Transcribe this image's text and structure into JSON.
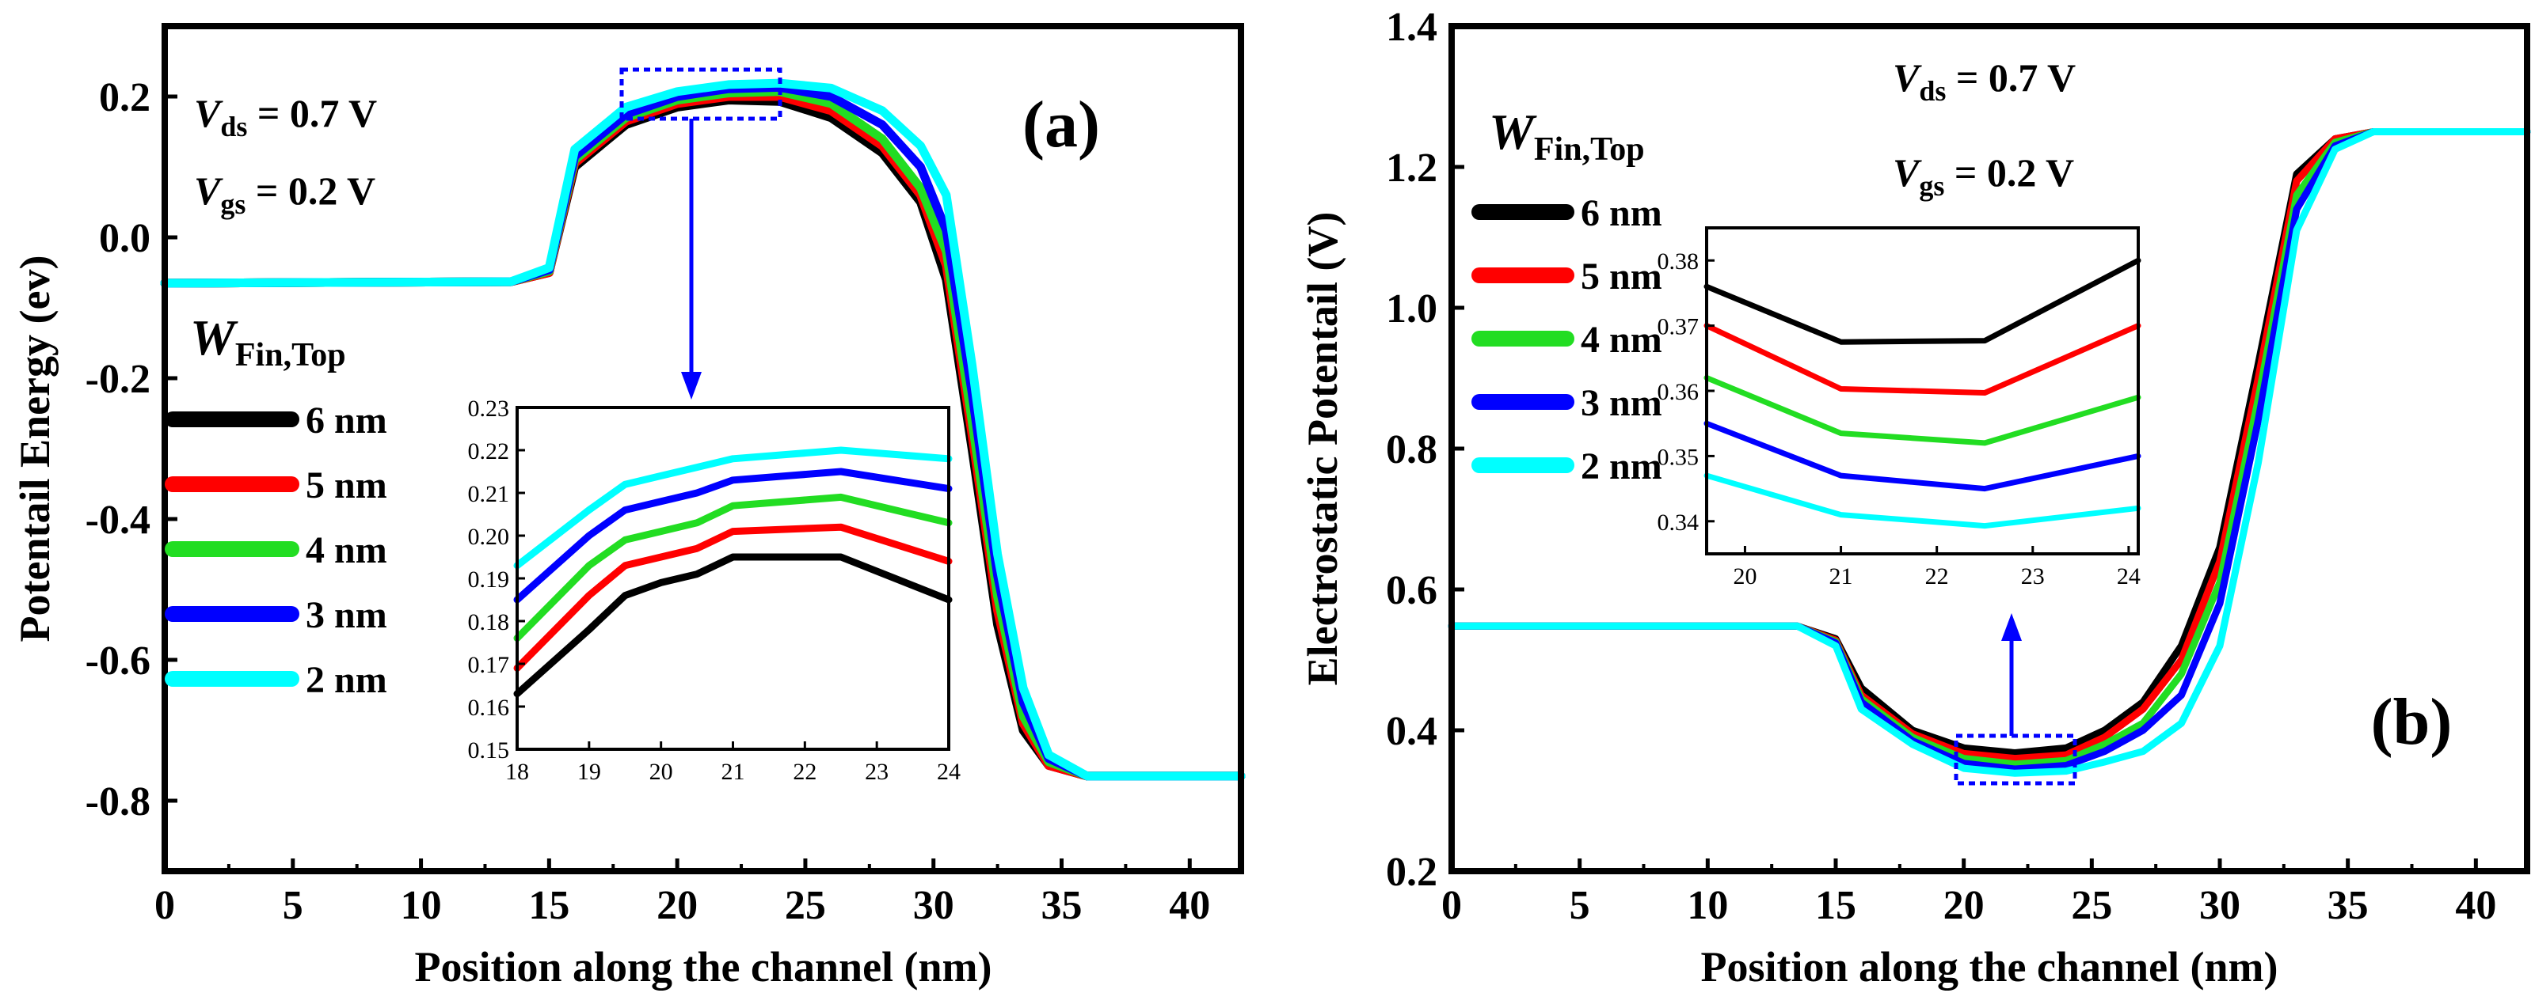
{
  "chart_data": [
    {
      "type": "line",
      "panel_label": "(a)",
      "xlabel": "Position along the channel (nm)",
      "ylabel": "Potentail Energy (ev)",
      "xlim": [
        0,
        42
      ],
      "ylim": [
        -0.9,
        0.3
      ],
      "xticks": [
        "0",
        "5",
        "10",
        "15",
        "20",
        "25",
        "30",
        "35",
        "40"
      ],
      "yticks": [
        "-0.8",
        "-0.6",
        "-0.4",
        "-0.2",
        "0.0",
        "0.2"
      ],
      "annotations": {
        "vds_sym": "V",
        "vds_sub": "ds",
        "vds_val": " = 0.7 V",
        "vgs_sym": "V",
        "vgs_sub": "gs",
        "vgs_val": " = 0.2 V"
      },
      "legend": {
        "title_sym": "W",
        "title_sub": "Fin,Top",
        "placement": "left"
      },
      "x": [
        0,
        13.5,
        15,
        16,
        18,
        20,
        22,
        24,
        26,
        28,
        29.5,
        30.5,
        31.5,
        32.5,
        33.5,
        34.5,
        36,
        42
      ],
      "series": [
        {
          "name": "6 nm",
          "color": "#000000",
          "values": [
            -0.065,
            -0.063,
            -0.05,
            0.1,
            0.16,
            0.185,
            0.195,
            0.193,
            0.17,
            0.12,
            0.05,
            -0.06,
            -0.3,
            -0.55,
            -0.7,
            -0.75,
            -0.765,
            -0.765
          ]
        },
        {
          "name": "5 nm",
          "color": "#ff0000",
          "values": [
            -0.065,
            -0.063,
            -0.05,
            0.105,
            0.165,
            0.19,
            0.2,
            0.2,
            0.18,
            0.13,
            0.06,
            -0.04,
            -0.28,
            -0.53,
            -0.69,
            -0.75,
            -0.765,
            -0.765
          ]
        },
        {
          "name": "4 nm",
          "color": "#22dd22",
          "values": [
            -0.065,
            -0.063,
            -0.048,
            0.11,
            0.17,
            0.195,
            0.205,
            0.207,
            0.19,
            0.14,
            0.07,
            -0.02,
            -0.26,
            -0.51,
            -0.68,
            -0.745,
            -0.765,
            -0.765
          ]
        },
        {
          "name": "3 nm",
          "color": "#0000ff",
          "values": [
            -0.065,
            -0.063,
            -0.046,
            0.115,
            0.175,
            0.2,
            0.211,
            0.213,
            0.2,
            0.16,
            0.1,
            0.01,
            -0.22,
            -0.48,
            -0.66,
            -0.74,
            -0.765,
            -0.765
          ]
        },
        {
          "name": "2 nm",
          "color": "#00ffff",
          "values": [
            -0.065,
            -0.063,
            -0.043,
            0.125,
            0.185,
            0.207,
            0.217,
            0.219,
            0.212,
            0.18,
            0.13,
            0.06,
            -0.18,
            -0.45,
            -0.64,
            -0.735,
            -0.765,
            -0.765
          ]
        }
      ],
      "inset": {
        "xlim": [
          18,
          24
        ],
        "ylim": [
          0.15,
          0.23
        ],
        "xticks": [
          "18",
          "19",
          "20",
          "21",
          "22",
          "23",
          "24"
        ],
        "yticks": [
          "0.15",
          "0.16",
          "0.17",
          "0.18",
          "0.19",
          "0.20",
          "0.21",
          "0.22",
          "0.23"
        ],
        "x": [
          18,
          19,
          19.5,
          20,
          20.5,
          21,
          22.5,
          24
        ],
        "series": [
          {
            "name": "6 nm",
            "color": "#000000",
            "values": [
              0.163,
              0.178,
              0.186,
              0.189,
              0.191,
              0.195,
              0.195,
              0.185
            ]
          },
          {
            "name": "5 nm",
            "color": "#ff0000",
            "values": [
              0.169,
              0.186,
              0.193,
              0.195,
              0.197,
              0.201,
              0.202,
              0.194
            ]
          },
          {
            "name": "4 nm",
            "color": "#22dd22",
            "values": [
              0.176,
              0.193,
              0.199,
              0.201,
              0.203,
              0.207,
              0.209,
              0.203
            ]
          },
          {
            "name": "3 nm",
            "color": "#0000ff",
            "values": [
              0.185,
              0.2,
              0.206,
              0.208,
              0.21,
              0.213,
              0.215,
              0.211
            ]
          },
          {
            "name": "2 nm",
            "color": "#00ffff",
            "values": [
              0.193,
              0.206,
              0.212,
              0.214,
              0.216,
              0.218,
              0.22,
              0.218
            ]
          }
        ]
      }
    },
    {
      "type": "line",
      "panel_label": "(b)",
      "xlabel": "Position along the channel (nm)",
      "ylabel": "Electrostatic Potentail (V)",
      "xlim": [
        0,
        42
      ],
      "ylim": [
        0.2,
        1.4
      ],
      "xticks": [
        "0",
        "5",
        "10",
        "15",
        "20",
        "25",
        "30",
        "35",
        "40"
      ],
      "yticks": [
        "0.2",
        "0.4",
        "0.6",
        "0.8",
        "1.0",
        "1.2",
        "1.4"
      ],
      "annotations": {
        "vds_sym": "V",
        "vds_sub": "ds",
        "vds_val": " = 0.7 V",
        "vgs_sym": "V",
        "vgs_sub": "gs",
        "vgs_val": " = 0.2 V"
      },
      "legend": {
        "title_sym": "W",
        "title_sub": "Fin,Top",
        "placement": "top-left"
      },
      "x": [
        0,
        13.5,
        15,
        16,
        18,
        20,
        22,
        24,
        25.5,
        27,
        28.5,
        30,
        31.5,
        33,
        34.5,
        36,
        42
      ],
      "series": [
        {
          "name": "6 nm",
          "color": "#000000",
          "values": [
            0.548,
            0.548,
            0.53,
            0.46,
            0.4,
            0.375,
            0.368,
            0.375,
            0.4,
            0.44,
            0.52,
            0.66,
            0.92,
            1.19,
            1.24,
            1.25,
            1.25
          ]
        },
        {
          "name": "5 nm",
          "color": "#ff0000",
          "values": [
            0.548,
            0.548,
            0.528,
            0.45,
            0.395,
            0.367,
            0.36,
            0.365,
            0.39,
            0.43,
            0.5,
            0.64,
            0.9,
            1.18,
            1.24,
            1.25,
            1.25
          ]
        },
        {
          "name": "4 nm",
          "color": "#22dd22",
          "values": [
            0.548,
            0.548,
            0.526,
            0.445,
            0.39,
            0.36,
            0.352,
            0.357,
            0.38,
            0.41,
            0.48,
            0.61,
            0.87,
            1.16,
            1.235,
            1.25,
            1.25
          ]
        },
        {
          "name": "3 nm",
          "color": "#0000ff",
          "values": [
            0.548,
            0.548,
            0.524,
            0.44,
            0.385,
            0.353,
            0.345,
            0.35,
            0.37,
            0.4,
            0.45,
            0.58,
            0.84,
            1.14,
            1.23,
            1.25,
            1.25
          ]
        },
        {
          "name": "2 nm",
          "color": "#00ffff",
          "values": [
            0.548,
            0.548,
            0.52,
            0.43,
            0.38,
            0.346,
            0.339,
            0.342,
            0.355,
            0.37,
            0.41,
            0.52,
            0.78,
            1.11,
            1.225,
            1.25,
            1.25
          ]
        }
      ],
      "inset": {
        "xlim": [
          19.6,
          24.1
        ],
        "ylim": [
          0.335,
          0.385
        ],
        "xticks": [
          "20",
          "21",
          "22",
          "23",
          "24"
        ],
        "yticks": [
          "0.34",
          "0.35",
          "0.36",
          "0.37",
          "0.38"
        ],
        "x": [
          19.6,
          21,
          22.5,
          24.1
        ],
        "series": [
          {
            "name": "6 nm",
            "color": "#000000",
            "values": [
              0.376,
              0.3675,
              0.3677,
              0.38
            ]
          },
          {
            "name": "5 nm",
            "color": "#ff0000",
            "values": [
              0.37,
              0.3603,
              0.3597,
              0.37
            ]
          },
          {
            "name": "4 nm",
            "color": "#22dd22",
            "values": [
              0.362,
              0.3535,
              0.352,
              0.359
            ]
          },
          {
            "name": "3 nm",
            "color": "#0000ff",
            "values": [
              0.355,
              0.347,
              0.345,
              0.35
            ]
          },
          {
            "name": "2 nm",
            "color": "#00ffff",
            "values": [
              0.347,
              0.341,
              0.3393,
              0.342
            ]
          }
        ]
      }
    }
  ]
}
